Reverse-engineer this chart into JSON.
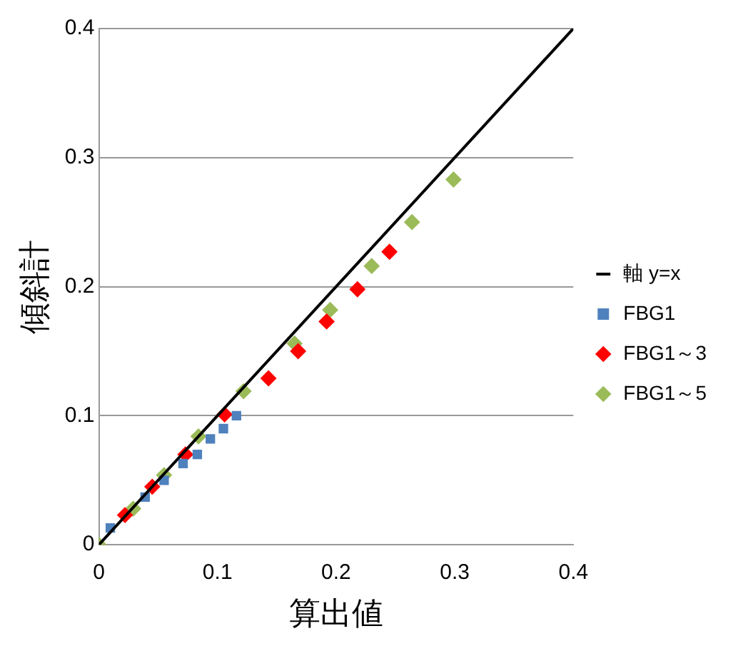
{
  "chart_data": {
    "type": "scatter",
    "xlabel": "算出値",
    "ylabel": "傾斜計",
    "xlim": [
      0,
      0.4
    ],
    "xticks": [
      0,
      0.1,
      0.2,
      0.3,
      0.4
    ],
    "ylim": [
      0,
      0.4
    ],
    "yticks": [
      0,
      0.1,
      0.2,
      0.3,
      0.4
    ],
    "grid": "y",
    "legend": "right",
    "series": [
      {
        "name": "軸 y=x",
        "type": "line",
        "color": "#000000",
        "marker": "none",
        "x": [
          0,
          0.4
        ],
        "values": [
          0,
          0.4
        ]
      },
      {
        "name": "FBG1",
        "color": "#4f81bd",
        "marker": "square",
        "x": [
          0.0097,
          0.039,
          0.055,
          0.071,
          0.083,
          0.094,
          0.105,
          0.116
        ],
        "values": [
          0.013,
          0.037,
          0.05,
          0.063,
          0.07,
          0.082,
          0.09,
          0.1
        ]
      },
      {
        "name": "FBG1～3",
        "color": "#ff0000",
        "marker": "diamond",
        "x": [
          0.022,
          0.045,
          0.073,
          0.106,
          0.143,
          0.168,
          0.192,
          0.218,
          0.245
        ],
        "values": [
          0.023,
          0.045,
          0.07,
          0.101,
          0.129,
          0.15,
          0.173,
          0.198,
          0.227
        ]
      },
      {
        "name": "FBG1～5",
        "color": "#9bbb59",
        "marker": "diamond",
        "x": [
          0,
          0.029,
          0.055,
          0.084,
          0.122,
          0.165,
          0.195,
          0.23,
          0.264,
          0.299
        ],
        "values": [
          0,
          0.028,
          0.054,
          0.084,
          0.119,
          0.156,
          0.182,
          0.216,
          0.25,
          0.283
        ]
      }
    ]
  }
}
